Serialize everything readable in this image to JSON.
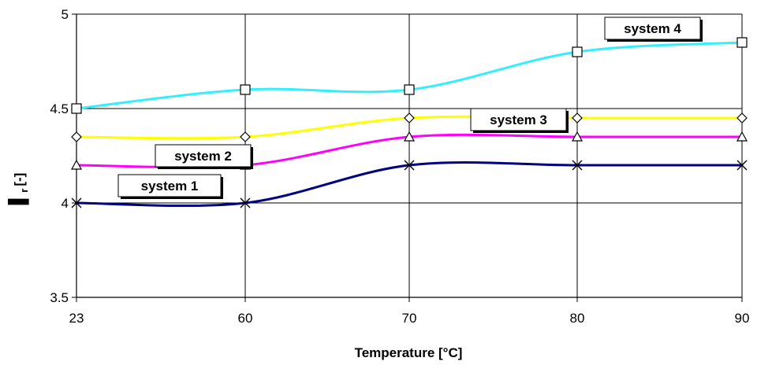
{
  "chart_data": {
    "type": "line",
    "title": "",
    "xlabel": "Temperature [°C]",
    "ylabel": "▌r [-]",
    "ylabel_parts": {
      "symbol": "▌",
      "subscript": "r",
      "unit": "[-]"
    },
    "x": [
      "23",
      "60",
      "70",
      "80",
      "90"
    ],
    "xlim": [
      "23",
      "90"
    ],
    "ylim": [
      3.5,
      5
    ],
    "yticks": [
      3.5,
      4,
      4.5,
      5
    ],
    "ytick_labels": [
      "3.5",
      "4",
      "4.5",
      "5"
    ],
    "grid": true,
    "legend": "inline-labels",
    "series": [
      {
        "name": "system 1",
        "color": "#000080",
        "marker": "x",
        "values": [
          4.0,
          4.0,
          4.2,
          4.2,
          4.2
        ]
      },
      {
        "name": "system 2",
        "color": "#ff00ff",
        "marker": "triangle",
        "values": [
          4.2,
          4.2,
          4.35,
          4.35,
          4.35
        ]
      },
      {
        "name": "system 3",
        "color": "#ffff00",
        "marker": "diamond",
        "values": [
          4.35,
          4.35,
          4.45,
          4.45,
          4.45
        ]
      },
      {
        "name": "system 4",
        "color": "#33eeff",
        "marker": "square",
        "values": [
          4.5,
          4.6,
          4.6,
          4.8,
          4.85
        ]
      }
    ]
  }
}
